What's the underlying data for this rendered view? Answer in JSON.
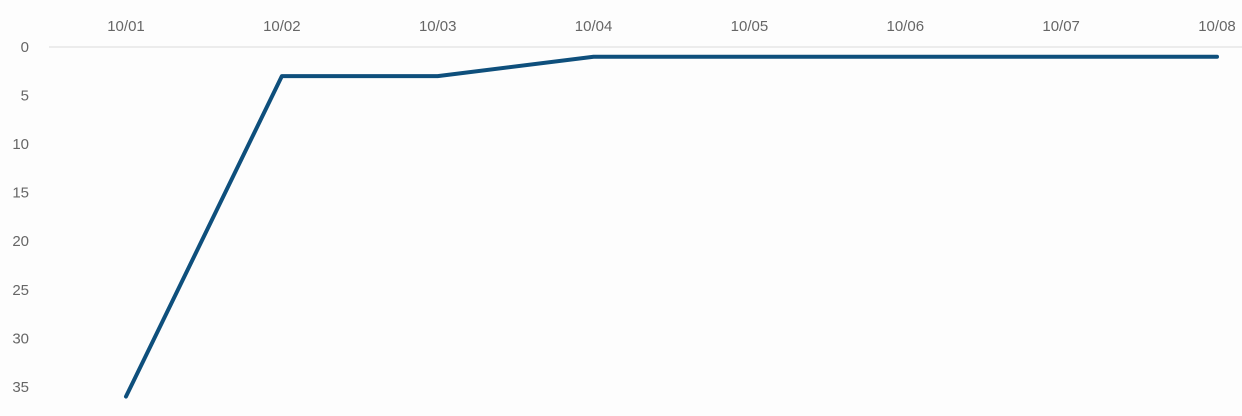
{
  "chart_data": {
    "type": "line",
    "title": "",
    "xlabel": "",
    "ylabel": "",
    "categories": [
      "10/01",
      "10/02",
      "10/03",
      "10/04",
      "10/05",
      "10/06",
      "10/07",
      "10/08"
    ],
    "values": [
      36,
      3,
      3,
      1,
      1,
      1,
      1,
      1
    ],
    "y_ticks": [
      "0",
      "5",
      "10",
      "15",
      "20",
      "25",
      "30",
      "35"
    ],
    "ylim": [
      0,
      36
    ],
    "y_axis_inverted": true,
    "x_axis_position": "top",
    "grid": false,
    "legend": "none",
    "colors": {
      "line": "#0e4f7c",
      "baseline": "#e6e6e6",
      "tick_text": "#666666"
    }
  }
}
